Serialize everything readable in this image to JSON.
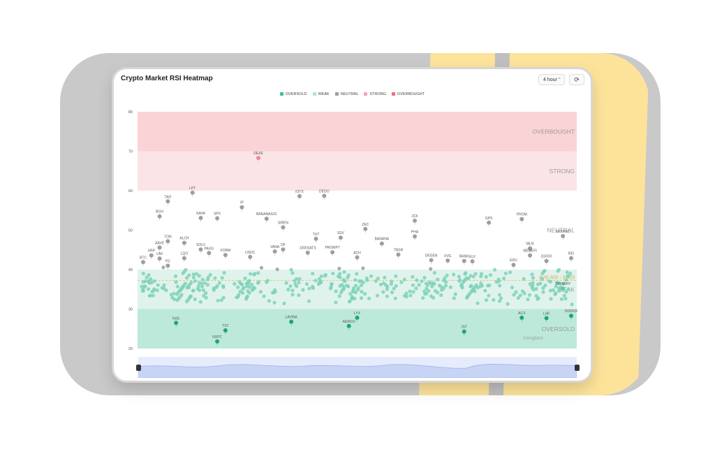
{
  "app": {
    "title": "Crypto Market RSI Heatmap",
    "interval": "4 hour",
    "refresh_icon": "refresh-icon",
    "watermark": "coinglass"
  },
  "legend": [
    {
      "label": "OVERSOLD",
      "color": "#3cc29a"
    },
    {
      "label": "WEAK",
      "color": "#a9e4d3"
    },
    {
      "label": "NEUTRAL",
      "color": "#9e9e9e"
    },
    {
      "label": "STRONG",
      "color": "#f4a4ad"
    },
    {
      "label": "OVERBOUGHT",
      "color": "#ec6f7e"
    }
  ],
  "chart_data": {
    "type": "scatter",
    "title": "Crypto Market RSI Heatmap",
    "ylim": [
      20,
      80
    ],
    "yticks": [
      20,
      30,
      40,
      50,
      60,
      70,
      80
    ],
    "zones": [
      {
        "label": "OVERBOUGHT",
        "from": 70,
        "to": 80,
        "color": "#f9d3d6"
      },
      {
        "label": "STRONG",
        "from": 60,
        "to": 70,
        "color": "#fbe4e6"
      },
      {
        "label": "NEUTRAL",
        "from": 40,
        "to": 60,
        "color": "#ffffff"
      },
      {
        "label": "WEAK",
        "from": 30,
        "to": 40,
        "color": "#dff3ec"
      },
      {
        "label": "OVERSOLD",
        "from": 20,
        "to": 30,
        "color": "#bde9da"
      }
    ],
    "avg_rsi": 37.23,
    "avg_label": "AVG RSI : 37.23",
    "points": [
      {
        "name": "DEXE",
        "x": 14,
        "y": 68.3
      },
      {
        "name": "LPT",
        "x": 6,
        "y": 59.5
      },
      {
        "name": "TAO",
        "x": 3,
        "y": 57.3
      },
      {
        "name": "BCH",
        "x": 2,
        "y": 53.5
      },
      {
        "name": "KAVA",
        "x": 7,
        "y": 53.1
      },
      {
        "name": "SPX",
        "x": 9,
        "y": 53
      },
      {
        "name": "IP",
        "x": 12,
        "y": 55.8
      },
      {
        "name": "IOTX",
        "x": 19,
        "y": 58.6
      },
      {
        "name": "DEGO",
        "x": 22,
        "y": 58.7
      },
      {
        "name": "BANANAS31",
        "x": 15,
        "y": 52.9
      },
      {
        "name": "SIREN",
        "x": 17,
        "y": 50.7
      },
      {
        "name": "ZEC",
        "x": 27,
        "y": 50.3
      },
      {
        "name": "JCK",
        "x": 33,
        "y": 52.4
      },
      {
        "name": "GPS",
        "x": 42,
        "y": 51.9
      },
      {
        "name": "PROM",
        "x": 46,
        "y": 52.8
      },
      {
        "name": "1000XEC",
        "x": 51,
        "y": 48.5
      },
      {
        "name": "TON",
        "x": 3,
        "y": 47.2
      },
      {
        "name": "AAVE",
        "x": 2,
        "y": 45.6
      },
      {
        "name": "ALCH",
        "x": 5,
        "y": 46.8
      },
      {
        "name": "SOLV",
        "x": 7,
        "y": 45.1
      },
      {
        "name": "PAXG",
        "x": 8,
        "y": 44.2
      },
      {
        "name": "FORM",
        "x": 10,
        "y": 43.7
      },
      {
        "name": "USDC",
        "x": 13,
        "y": 43.2
      },
      {
        "name": "VANA",
        "x": 16,
        "y": 44.6
      },
      {
        "name": "DF",
        "x": 17,
        "y": 45.1
      },
      {
        "name": "1000SATS",
        "x": 20,
        "y": 44.3
      },
      {
        "name": "TUT",
        "x": 21,
        "y": 47.8
      },
      {
        "name": "SSV",
        "x": 24,
        "y": 48.1
      },
      {
        "name": "PROMPT",
        "x": 23,
        "y": 44.4
      },
      {
        "name": "ACH",
        "x": 26,
        "y": 43.1
      },
      {
        "name": "BANANA",
        "x": 29,
        "y": 46.6
      },
      {
        "name": "TNSR",
        "x": 31,
        "y": 43.8
      },
      {
        "name": "PHA",
        "x": 33,
        "y": 48.4
      },
      {
        "name": "DEGEN",
        "x": 35,
        "y": 42.4
      },
      {
        "name": "XVG",
        "x": 37,
        "y": 42.3
      },
      {
        "name": "BANK",
        "x": 39,
        "y": 42.2
      },
      {
        "name": "ELV",
        "x": 40,
        "y": 42.1
      },
      {
        "name": "MLN",
        "x": 47,
        "y": 45.4
      },
      {
        "name": "MEMEFI",
        "x": 47,
        "y": 43.6
      },
      {
        "name": "QUICK",
        "x": 49,
        "y": 42.2
      },
      {
        "name": "REI",
        "x": 52,
        "y": 42.9
      },
      {
        "name": "XRP",
        "x": 1,
        "y": 43.6
      },
      {
        "name": "UNI",
        "x": 2,
        "y": 42.8
      },
      {
        "name": "LQO",
        "x": 5,
        "y": 42.9
      },
      {
        "name": "BTC",
        "x": 0,
        "y": 41.9
      },
      {
        "name": "FG",
        "x": 3,
        "y": 41
      },
      {
        "name": "EDU",
        "x": 45,
        "y": 41.2
      },
      {
        "name": "KAS",
        "x": 4,
        "y": 26.5
      },
      {
        "name": "TST",
        "x": 10,
        "y": 24.6
      },
      {
        "name": "NXPC",
        "x": 9,
        "y": 21.8
      },
      {
        "name": "LAVINA",
        "x": 18,
        "y": 26.8
      },
      {
        "name": "AERGO",
        "x": 25,
        "y": 25.7
      },
      {
        "name": "JST",
        "x": 39,
        "y": 24.3
      },
      {
        "name": "LYX",
        "x": 26,
        "y": 27.8
      },
      {
        "name": "1000WHY",
        "x": 51,
        "y": 35.2
      },
      {
        "name": "DODOX",
        "x": 52,
        "y": 28.3
      },
      {
        "name": "ACX",
        "x": 46,
        "y": 27.8
      },
      {
        "name": "LSK",
        "x": 49,
        "y": 27.7
      }
    ]
  },
  "cluster_seed": 7
}
